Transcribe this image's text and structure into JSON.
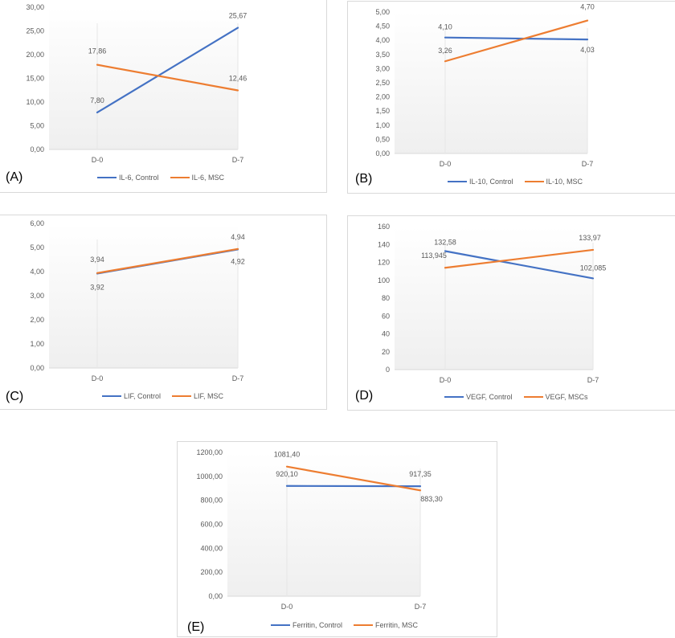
{
  "colors": {
    "control": "#4472C4",
    "msc": "#ED7D31",
    "grid": "#d9d9d9",
    "text": "#595959"
  },
  "chart_data": [
    {
      "id": "A",
      "type": "line",
      "label": "(A)",
      "categories": [
        "D-0",
        "D-7"
      ],
      "yticks": [
        "0,00",
        "5,00",
        "10,00",
        "15,00",
        "20,00",
        "25,00",
        "30,00"
      ],
      "ylim": [
        0,
        30
      ],
      "series": [
        {
          "name": "IL-6, Control",
          "values": [
            7.8,
            25.67
          ],
          "labels": [
            "7,80",
            "25,67"
          ],
          "color": "#4472C4"
        },
        {
          "name": "IL-6, MSC",
          "values": [
            17.86,
            12.46
          ],
          "labels": [
            "17,86",
            "12,46"
          ],
          "color": "#ED7D31"
        }
      ]
    },
    {
      "id": "B",
      "type": "line",
      "label": "(B)",
      "categories": [
        "D-0",
        "D-7"
      ],
      "yticks": [
        "0,00",
        "0,50",
        "1,00",
        "1,50",
        "2,00",
        "2,50",
        "3,00",
        "3,50",
        "4,00",
        "4,50",
        "5,00"
      ],
      "ylim": [
        0,
        5
      ],
      "series": [
        {
          "name": "IL-10, Control",
          "values": [
            4.1,
            4.03
          ],
          "labels": [
            "4,10",
            "4,03"
          ],
          "color": "#4472C4"
        },
        {
          "name": "IL-10, MSC",
          "values": [
            3.26,
            4.7
          ],
          "labels": [
            "3,26",
            "4,70"
          ],
          "color": "#ED7D31"
        }
      ]
    },
    {
      "id": "C",
      "type": "line",
      "label": "(C)",
      "categories": [
        "D-0",
        "D-7"
      ],
      "yticks": [
        "0,00",
        "1,00",
        "2,00",
        "3,00",
        "4,00",
        "5,00",
        "6,00"
      ],
      "ylim": [
        0,
        6
      ],
      "series": [
        {
          "name": "LIF, Control",
          "values": [
            3.92,
            4.92
          ],
          "labels": [
            "3,92",
            "4,92"
          ],
          "color": "#4472C4"
        },
        {
          "name": "LIF, MSC",
          "values": [
            3.94,
            4.94
          ],
          "labels": [
            "3,94",
            "4,94"
          ],
          "color": "#ED7D31"
        }
      ]
    },
    {
      "id": "D",
      "type": "line",
      "label": "(D)",
      "categories": [
        "D-0",
        "D-7"
      ],
      "yticks": [
        "0",
        "20",
        "40",
        "60",
        "80",
        "100",
        "120",
        "140",
        "160"
      ],
      "ylim": [
        0,
        160
      ],
      "series": [
        {
          "name": "VEGF, Control",
          "values": [
            132.58,
            102.085
          ],
          "labels": [
            "132,58",
            "102,085"
          ],
          "color": "#4472C4"
        },
        {
          "name": "VEGF, MSCs",
          "values": [
            113.945,
            133.97
          ],
          "labels": [
            "113,945",
            "133,97"
          ],
          "color": "#ED7D31"
        }
      ]
    },
    {
      "id": "E",
      "type": "line",
      "label": "(E)",
      "categories": [
        "D-0",
        "D-7"
      ],
      "yticks": [
        "0,00",
        "200,00",
        "400,00",
        "600,00",
        "800,00",
        "1000,00",
        "1200,00"
      ],
      "ylim": [
        0,
        1200
      ],
      "series": [
        {
          "name": "Ferritin, Control",
          "values": [
            920.1,
            917.35
          ],
          "labels": [
            "920,10",
            "917,35"
          ],
          "color": "#4472C4"
        },
        {
          "name": "Ferritin, MSC",
          "values": [
            1081.4,
            883.3
          ],
          "labels": [
            "1081,40",
            "883,30"
          ],
          "color": "#ED7D31"
        }
      ]
    }
  ]
}
